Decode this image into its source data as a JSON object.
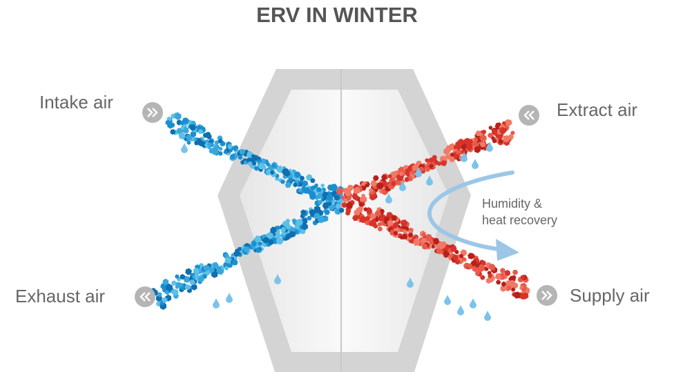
{
  "title": "ERV IN WINTER",
  "labels": {
    "intake": "Intake air",
    "extract": "Extract air",
    "exhaust": "Exhaust air",
    "supply": "Supply air"
  },
  "annotation": [
    "Humidity &",
    "heat recovery"
  ]
}
